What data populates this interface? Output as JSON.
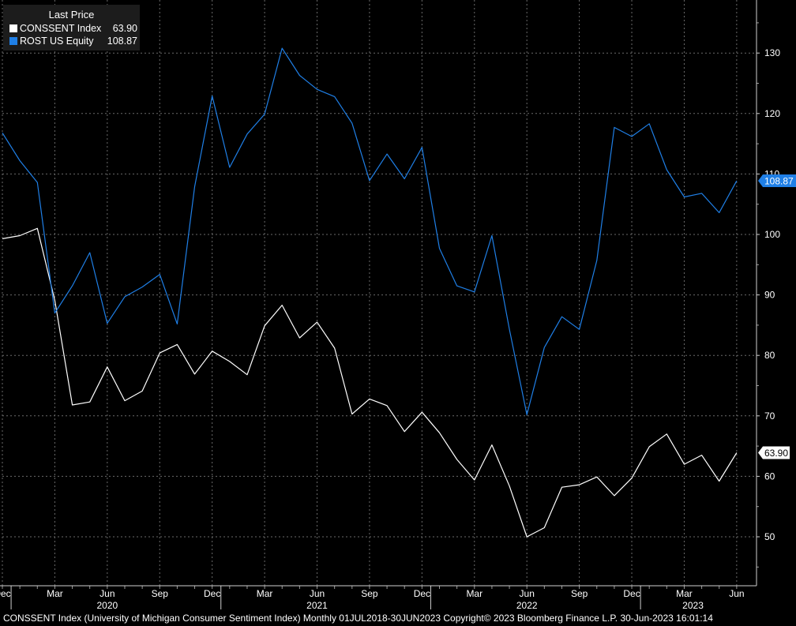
{
  "legend": {
    "header": "Last Price",
    "entries": [
      {
        "name": "CONSSENT Index",
        "value": "63.90",
        "color": "#ffffff"
      },
      {
        "name": "ROST US Equity",
        "value": "108.87",
        "color": "#1f7fe6"
      }
    ]
  },
  "footer": {
    "text": "CONSSENT Index (University of Michigan Consumer Sentiment Index)  Monthly 01JUL2018-30JUN2023    Copyright© 2023 Bloomberg Finance L.P.     30-Jun-2023 16:01:14"
  },
  "chart_data": {
    "type": "line",
    "y_axis": {
      "ticks": [
        50,
        60,
        70,
        80,
        90,
        100,
        110,
        120,
        130
      ],
      "position": "right",
      "ylim": [
        45,
        135
      ]
    },
    "x_axis": {
      "month_ticks": [
        "Dec",
        "Mar",
        "Jun",
        "Sep",
        "Dec",
        "Mar",
        "Jun",
        "Sep",
        "Dec",
        "Mar",
        "Jun",
        "Sep",
        "Dec",
        "Mar",
        "Jun"
      ],
      "year_labels": [
        "2020",
        "2021",
        "2022",
        "2023"
      ]
    },
    "grid": true,
    "x": [
      "2019-12",
      "2020-01",
      "2020-02",
      "2020-03",
      "2020-04",
      "2020-05",
      "2020-06",
      "2020-07",
      "2020-08",
      "2020-09",
      "2020-10",
      "2020-11",
      "2020-12",
      "2021-01",
      "2021-02",
      "2021-03",
      "2021-04",
      "2021-05",
      "2021-06",
      "2021-07",
      "2021-08",
      "2021-09",
      "2021-10",
      "2021-11",
      "2021-12",
      "2022-01",
      "2022-02",
      "2022-03",
      "2022-04",
      "2022-05",
      "2022-06",
      "2022-07",
      "2022-08",
      "2022-09",
      "2022-10",
      "2022-11",
      "2022-12",
      "2023-01",
      "2023-02",
      "2023-03",
      "2023-04",
      "2023-05",
      "2023-06"
    ],
    "series": [
      {
        "name": "CONSSENT Index",
        "color": "#ffffff",
        "values": [
          99.3,
          99.8,
          101.0,
          89.1,
          71.8,
          72.3,
          78.1,
          72.5,
          74.1,
          80.4,
          81.8,
          76.9,
          80.7,
          79.0,
          76.8,
          84.9,
          88.3,
          82.9,
          85.5,
          81.2,
          70.3,
          72.8,
          71.7,
          67.4,
          70.6,
          67.2,
          62.8,
          59.4,
          65.2,
          58.4,
          50.0,
          51.5,
          58.2,
          58.6,
          59.9,
          56.8,
          59.7,
          64.9,
          67.0,
          62.0,
          63.5,
          59.2,
          63.9
        ]
      },
      {
        "name": "ROST US Equity",
        "color": "#1f7fe6",
        "values": [
          116.8,
          112.2,
          108.6,
          87.0,
          91.5,
          97.0,
          85.3,
          89.7,
          91.3,
          93.4,
          85.2,
          107.9,
          122.9,
          111.1,
          116.6,
          119.9,
          130.8,
          126.3,
          124.0,
          122.8,
          118.4,
          108.9,
          113.3,
          109.2,
          114.4,
          97.7,
          91.5,
          90.5,
          99.8,
          84.3,
          70.2,
          81.3,
          86.4,
          84.3,
          95.7,
          117.7,
          116.2,
          118.3,
          110.7,
          106.2,
          106.8,
          103.6,
          108.87
        ]
      }
    ],
    "last_value_labels": [
      "108.87",
      "63.90"
    ],
    "legend_placement": "top-left"
  }
}
